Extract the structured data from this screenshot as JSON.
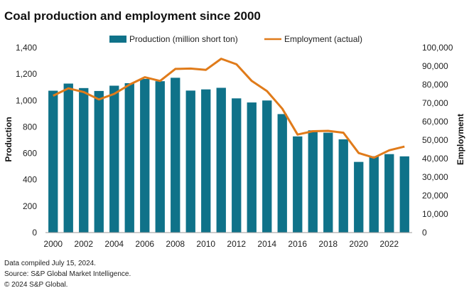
{
  "chart_data": {
    "type": "bar",
    "title": "Coal production and employment since 2000",
    "ylabel": "Production",
    "y2label": "Employment",
    "ylim": [
      0,
      1400
    ],
    "y2lim": [
      0,
      100000
    ],
    "yticks": [
      "0",
      "200",
      "400",
      "600",
      "800",
      "1,000",
      "1,200",
      "1,400"
    ],
    "y2ticks": [
      "0",
      "10,000",
      "20,000",
      "30,000",
      "40,000",
      "50,000",
      "60,000",
      "70,000",
      "80,000",
      "90,000",
      "100,000"
    ],
    "x": [
      2000,
      2001,
      2002,
      2003,
      2004,
      2005,
      2006,
      2007,
      2008,
      2009,
      2010,
      2011,
      2012,
      2013,
      2014,
      2015,
      2016,
      2017,
      2018,
      2019,
      2020,
      2021,
      2022,
      2023
    ],
    "xticks": [
      "2000",
      "2002",
      "2004",
      "2006",
      "2008",
      "2010",
      "2012",
      "2014",
      "2016",
      "2018",
      "2020",
      "2022"
    ],
    "legend_position": "top",
    "series": [
      {
        "name": "Production (million short ton)",
        "type": "bar",
        "axis": "left",
        "color": "#0f7289",
        "values": [
          1074,
          1128,
          1094,
          1072,
          1112,
          1131,
          1163,
          1146,
          1172,
          1075,
          1084,
          1096,
          1016,
          985,
          1000,
          897,
          728,
          774,
          756,
          706,
          535,
          578,
          594,
          577
        ]
      },
      {
        "name": "Employment (actual)",
        "type": "line",
        "axis": "right",
        "color": "#e07b1a",
        "values": [
          74000,
          78000,
          76000,
          72000,
          75000,
          80000,
          84000,
          82000,
          88500,
          88700,
          88000,
          94000,
          91000,
          82000,
          76500,
          67000,
          53000,
          54800,
          55000,
          54000,
          43000,
          40500,
          44500,
          46500
        ]
      }
    ]
  },
  "footnotes": [
    "Data compiled July 15, 2024.",
    "Source: S&P Global Market Intelligence.",
    "© 2024 S&P Global."
  ]
}
